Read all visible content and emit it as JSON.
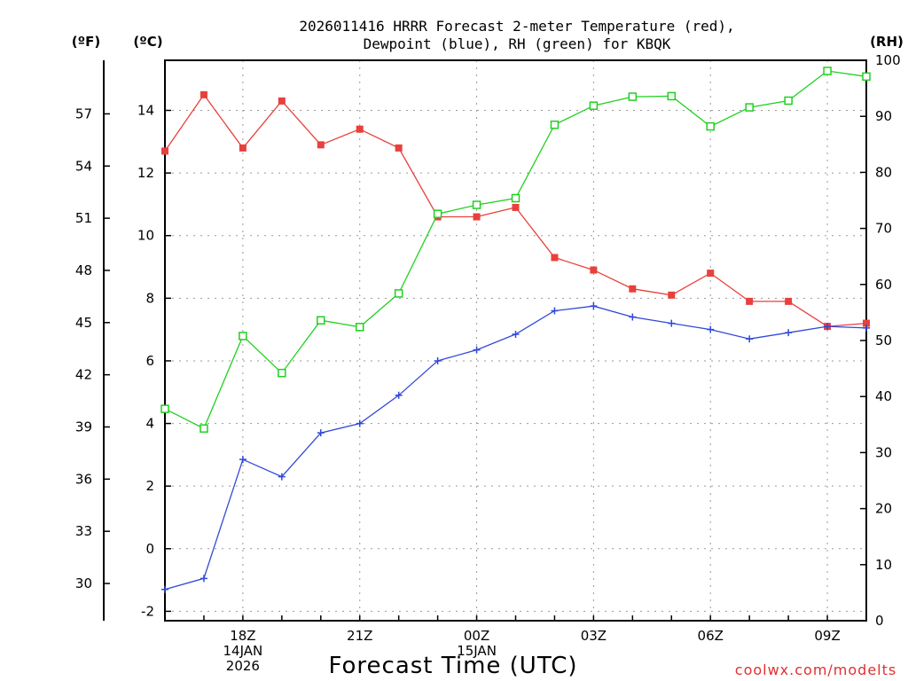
{
  "chart_data": {
    "type": "line",
    "title_line1": "2026011416 HRRR Forecast 2-meter Temperature (red),",
    "title_line2": "Dewpoint (blue), RH (green) for KBQK",
    "xlabel": "Forecast Time (UTC)",
    "credit": "coolwx.com/modelts",
    "units": {
      "fahrenheit": "(ºF)",
      "celsius": "(ºC)",
      "rh": "(RH)"
    },
    "x_hours": [
      16,
      17,
      18,
      19,
      20,
      21,
      22,
      23,
      24,
      25,
      26,
      27,
      28,
      29,
      30,
      31,
      32,
      33,
      34
    ],
    "x_ticks": [
      {
        "hour": 18,
        "lines": [
          "18Z",
          "14JAN",
          "2026"
        ]
      },
      {
        "hour": 21,
        "lines": [
          "21Z"
        ]
      },
      {
        "hour": 24,
        "lines": [
          "00Z",
          "15JAN"
        ]
      },
      {
        "hour": 27,
        "lines": [
          "03Z"
        ]
      },
      {
        "hour": 30,
        "lines": [
          "06Z"
        ]
      },
      {
        "hour": 33,
        "lines": [
          "09Z"
        ]
      }
    ],
    "xlim": [
      16,
      34
    ],
    "celsius_range": [
      -2.3,
      15.6
    ],
    "celsius_ticks": [
      "-2",
      "0",
      "2",
      "4",
      "6",
      "8",
      "10",
      "12",
      "14"
    ],
    "fahrenheit_ticks": [
      "30",
      "33",
      "36",
      "39",
      "42",
      "45",
      "48",
      "51",
      "54",
      "57"
    ],
    "rh_range": [
      0,
      100
    ],
    "rh_ticks": [
      "0",
      "10",
      "20",
      "30",
      "40",
      "50",
      "60",
      "70",
      "80",
      "90",
      "100"
    ],
    "series": [
      {
        "name": "Temperature",
        "axis": "celsius",
        "color": "#e8403c",
        "marker": "filled-square",
        "values": [
          12.7,
          14.5,
          12.8,
          14.3,
          12.9,
          13.4,
          12.8,
          10.6,
          10.6,
          10.9,
          9.3,
          8.9,
          8.3,
          8.1,
          8.8,
          7.9,
          7.9,
          7.1,
          7.2
        ]
      },
      {
        "name": "Dewpoint",
        "axis": "celsius",
        "color": "#3048d8",
        "marker": "plus",
        "values": [
          -1.3,
          -0.95,
          2.85,
          2.3,
          3.7,
          4.0,
          4.9,
          6.0,
          6.35,
          6.85,
          7.6,
          7.75,
          7.4,
          7.2,
          7.0,
          6.7,
          6.9,
          7.1,
          7.05
        ]
      },
      {
        "name": "RH",
        "axis": "rh",
        "color": "#20d020",
        "marker": "open-square",
        "values": [
          37.8,
          34.3,
          50.8,
          44.2,
          53.6,
          52.4,
          58.4,
          72.6,
          74.2,
          75.4,
          88.5,
          91.9,
          93.5,
          93.6,
          88.2,
          91.6,
          92.8,
          98.1,
          97.1
        ]
      }
    ]
  }
}
